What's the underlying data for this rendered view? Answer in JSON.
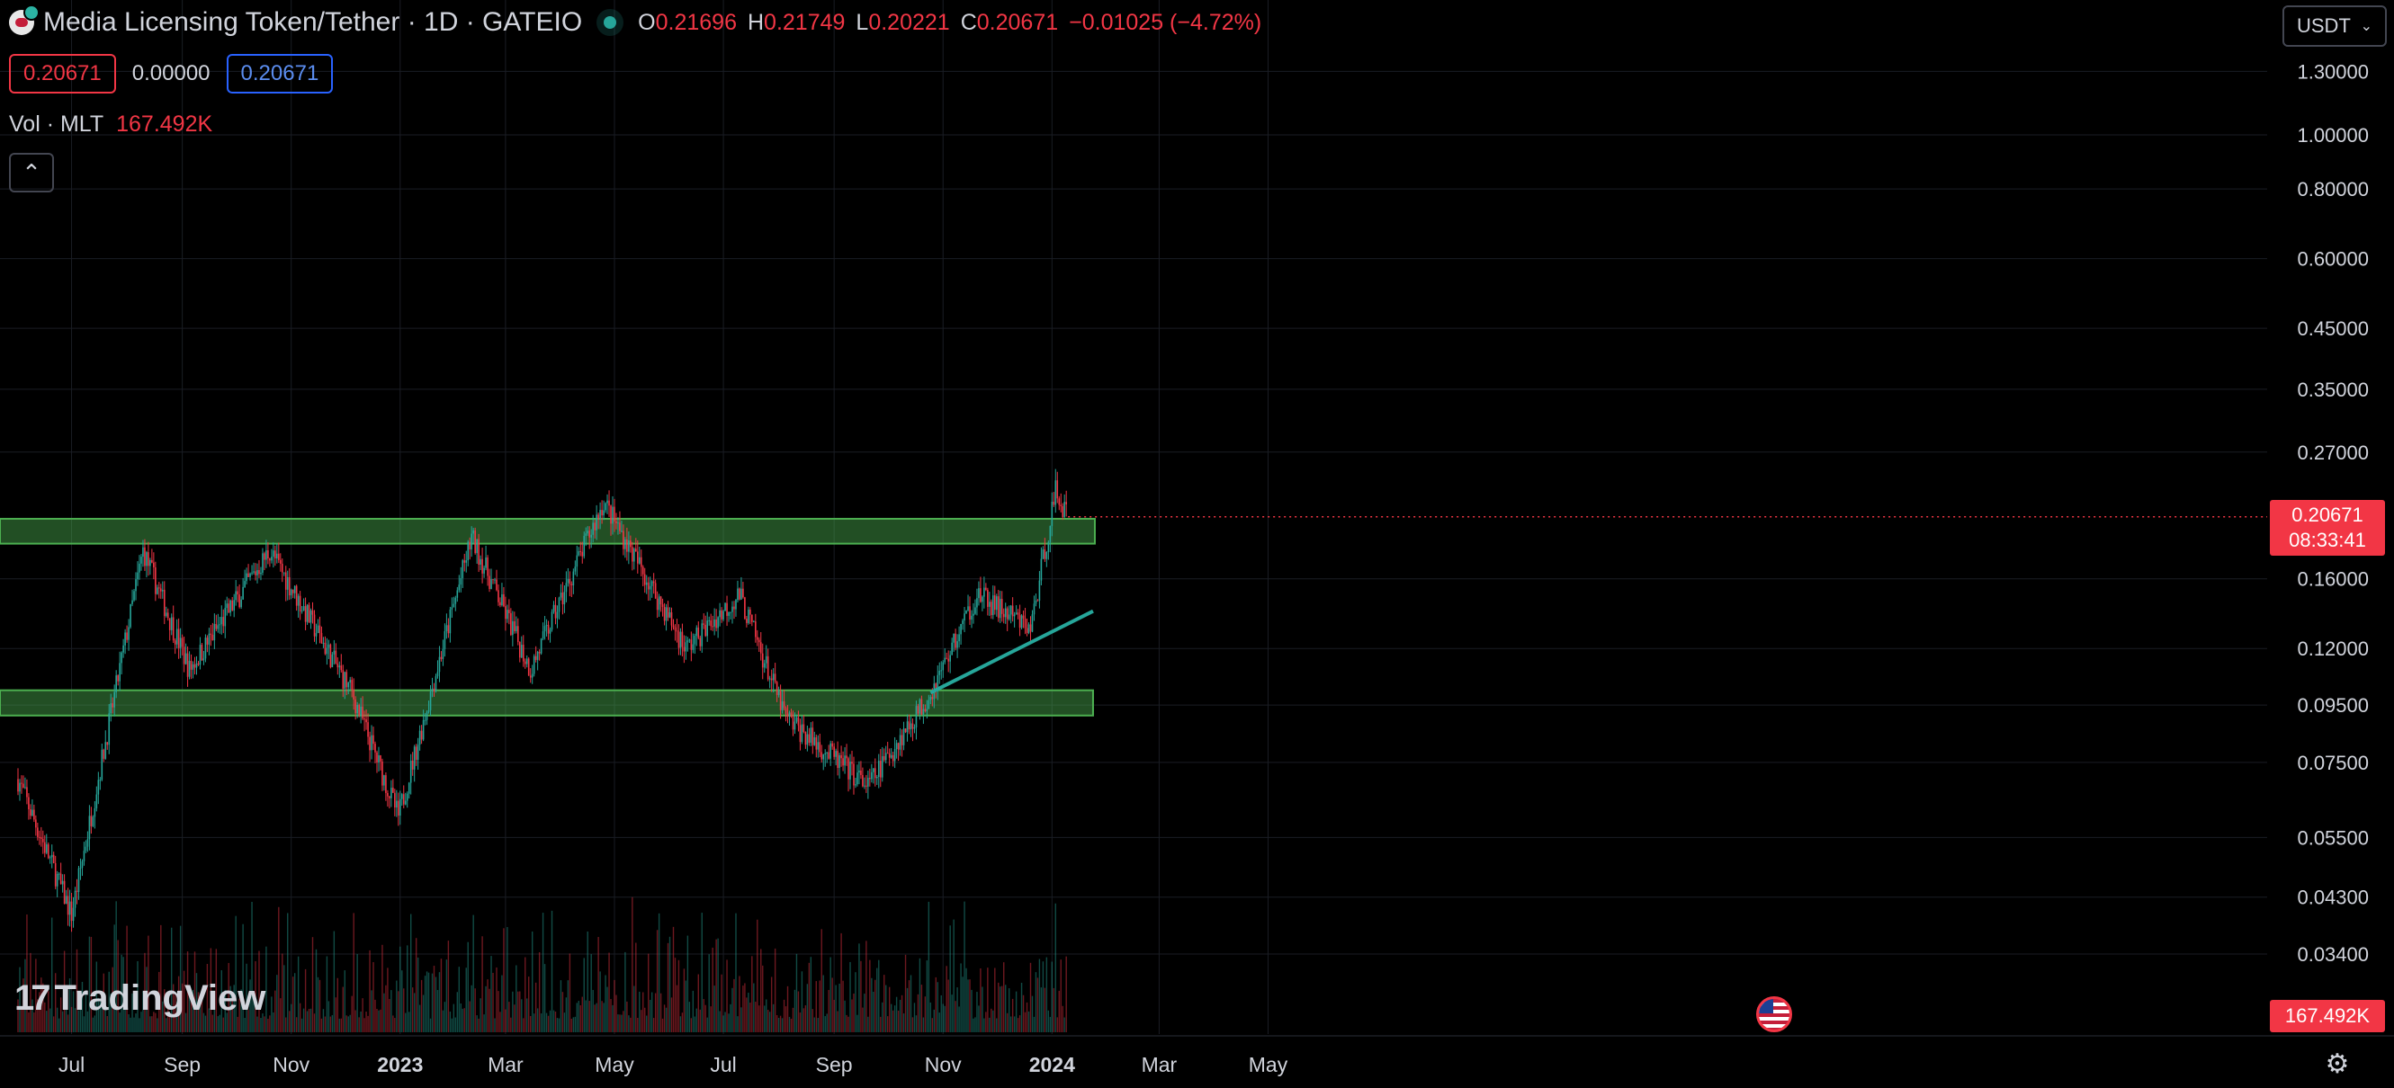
{
  "header": {
    "title": "Media Licensing Token/Tether · 1D · GATEIO",
    "ohlc": [
      {
        "k": "O",
        "v": "0.21696"
      },
      {
        "k": "H",
        "v": "0.21749"
      },
      {
        "k": "L",
        "v": "0.20221"
      },
      {
        "k": "C",
        "v": "0.20671"
      }
    ],
    "change": "−0.01025 (−4.72%)"
  },
  "quote": {
    "bid": "0.20671",
    "spread": "0.00000",
    "ask": "0.20671"
  },
  "volume": {
    "label": "Vol · MLT",
    "value": "167.492K"
  },
  "currency": {
    "label": "USDT"
  },
  "price_tag": {
    "price": "0.20671",
    "countdown": "08:33:41"
  },
  "volume_tag": "167.492K",
  "branding": "TradingView",
  "colors": {
    "up": "#26a69a",
    "down": "#f23645",
    "zone": "#4caf50",
    "trendline": "#26a69a"
  },
  "icons": {
    "symbol": "symbol-logo-icon",
    "collapse": "chevron-up-icon",
    "settings": "gear-icon",
    "flag": "us-flag-icon"
  },
  "chart_data": {
    "type": "candlestick",
    "y_scale": "log",
    "y_ticks": [
      "1.30000",
      "1.00000",
      "0.80000",
      "0.60000",
      "0.45000",
      "0.35000",
      "0.27000",
      "0.16000",
      "0.12000",
      "0.09500",
      "0.07500",
      "0.05500",
      "0.04300",
      "0.03400"
    ],
    "x_ticks": [
      "Jul",
      "Sep",
      "Nov",
      "2023",
      "Mar",
      "May",
      "Jul",
      "Sep",
      "Nov",
      "2024",
      "Mar",
      "May"
    ],
    "zones": [
      {
        "low": 0.185,
        "high": 0.205,
        "from": "2022-06-01",
        "to": "2024-01-25"
      },
      {
        "low": 0.091,
        "high": 0.101,
        "from": "2022-06-01",
        "to": "2024-01-24"
      }
    ],
    "trendline": {
      "from": {
        "x": "2023-10-25",
        "y": 0.1
      },
      "to": {
        "x": "2024-01-24",
        "y": 0.14
      }
    },
    "last_price": 0.20671,
    "key_points": [
      {
        "date": "2022-06-01",
        "price": 0.07
      },
      {
        "date": "2022-07-01",
        "price": 0.04
      },
      {
        "date": "2022-08-10",
        "price": 0.18
      },
      {
        "date": "2022-09-05",
        "price": 0.11
      },
      {
        "date": "2022-10-20",
        "price": 0.18
      },
      {
        "date": "2022-12-05",
        "price": 0.1
      },
      {
        "date": "2022-12-31",
        "price": 0.06
      },
      {
        "date": "2023-02-10",
        "price": 0.19
      },
      {
        "date": "2023-03-15",
        "price": 0.11
      },
      {
        "date": "2023-04-25",
        "price": 0.22
      },
      {
        "date": "2023-06-10",
        "price": 0.12
      },
      {
        "date": "2023-07-10",
        "price": 0.15
      },
      {
        "date": "2023-08-05",
        "price": 0.09
      },
      {
        "date": "2023-09-20",
        "price": 0.068
      },
      {
        "date": "2023-10-25",
        "price": 0.1
      },
      {
        "date": "2023-11-20",
        "price": 0.15
      },
      {
        "date": "2023-12-20",
        "price": 0.13
      },
      {
        "date": "2024-01-03",
        "price": 0.23
      },
      {
        "date": "2024-01-10",
        "price": 0.207
      }
    ]
  }
}
